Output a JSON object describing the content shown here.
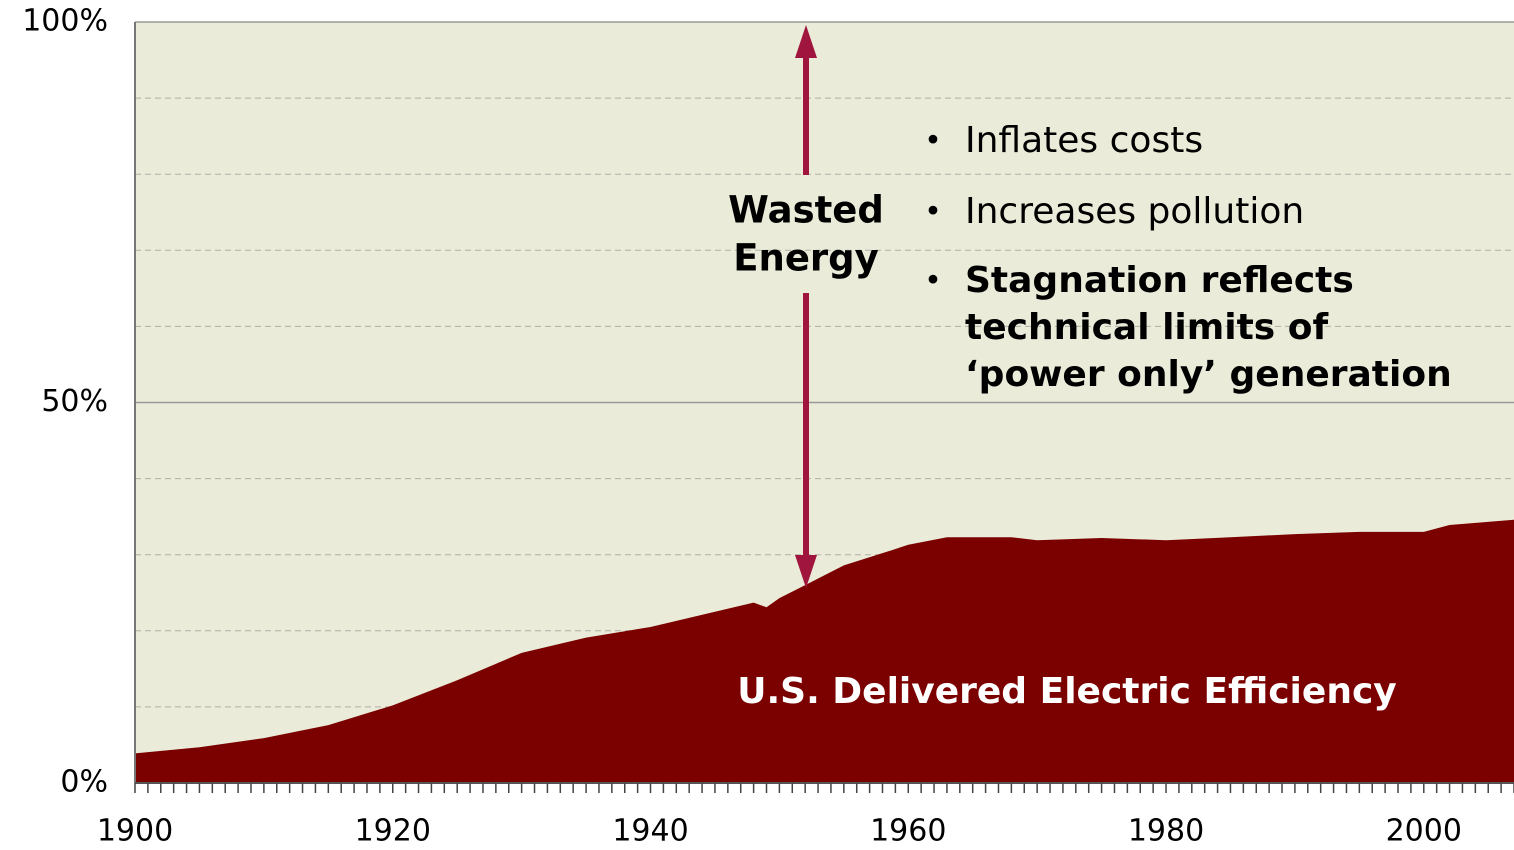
{
  "chart_data": {
    "type": "area",
    "color": "#7b0000",
    "background": "#eaebd9",
    "x": [
      1900,
      1905,
      1910,
      1915,
      1920,
      1925,
      1930,
      1935,
      1940,
      1945,
      1948,
      1949,
      1950,
      1952,
      1955,
      1958,
      1960,
      1963,
      1968,
      1970,
      1975,
      1980,
      1985,
      1990,
      1995,
      2000,
      2002,
      2007
    ],
    "values": [
      3.9,
      4.7,
      5.9,
      7.6,
      10.2,
      13.5,
      17.1,
      19.1,
      20.5,
      22.5,
      23.7,
      23.1,
      24.3,
      26.0,
      28.6,
      30.2,
      31.3,
      32.3,
      32.3,
      31.9,
      32.2,
      31.9,
      32.3,
      32.7,
      33.0,
      33.0,
      33.9,
      34.6
    ],
    "xlim": [
      1900,
      2007
    ],
    "ylim": [
      0,
      100
    ],
    "xticks": [
      1900,
      1920,
      1940,
      1960,
      1980,
      2000
    ],
    "minor_xticks": [
      1900,
      1901,
      1902,
      1903,
      1904,
      1905,
      1906,
      1907,
      1908,
      1909,
      1910,
      1911,
      1912,
      1913,
      1914,
      1915,
      1916,
      1917,
      1918,
      1919,
      1920,
      1921,
      1922,
      1923,
      1924,
      1925,
      1926,
      1927,
      1928,
      1929,
      1930,
      1931,
      1932,
      1933,
      1934,
      1935,
      1936,
      1937,
      1938,
      1939,
      1940,
      1941,
      1942,
      1943,
      1944,
      1945,
      1946,
      1947,
      1948,
      1949,
      1950,
      1951,
      1952,
      1953,
      1954,
      1955,
      1956,
      1957,
      1958,
      1959,
      1960,
      1961,
      1962,
      1963,
      1964,
      1965,
      1966,
      1967,
      1968,
      1969,
      1970,
      1971,
      1972,
      1973,
      1974,
      1975,
      1976,
      1977,
      1978,
      1979,
      1980,
      1981,
      1982,
      1983,
      1984,
      1985,
      1986,
      1987,
      1988,
      1989,
      1990,
      1991,
      1992,
      1993,
      1994,
      1995,
      1996,
      1997,
      1998,
      1999,
      2000,
      2001,
      2002,
      2003,
      2004,
      2005,
      2006,
      2007
    ],
    "yticks": [
      {
        "value": 0,
        "label": "0%"
      },
      {
        "value": 50,
        "label": "50%"
      },
      {
        "value": 100,
        "label": "100%"
      }
    ],
    "minor_yticks": [
      10,
      20,
      30,
      40,
      60,
      70,
      80,
      90
    ],
    "grid": true,
    "annotation": [
      "Wasted",
      "Energy"
    ],
    "area_label": "U.S. Delivered Electric Efficiency",
    "bullets": [
      {
        "lines": [
          "Inflates costs"
        ],
        "bold": false
      },
      {
        "lines": [
          "Increases pollution"
        ],
        "bold": false
      },
      {
        "lines": [
          "Stagnation reflects",
          "technical limits of",
          "‘power only’ generation"
        ],
        "bold": true
      }
    ]
  }
}
